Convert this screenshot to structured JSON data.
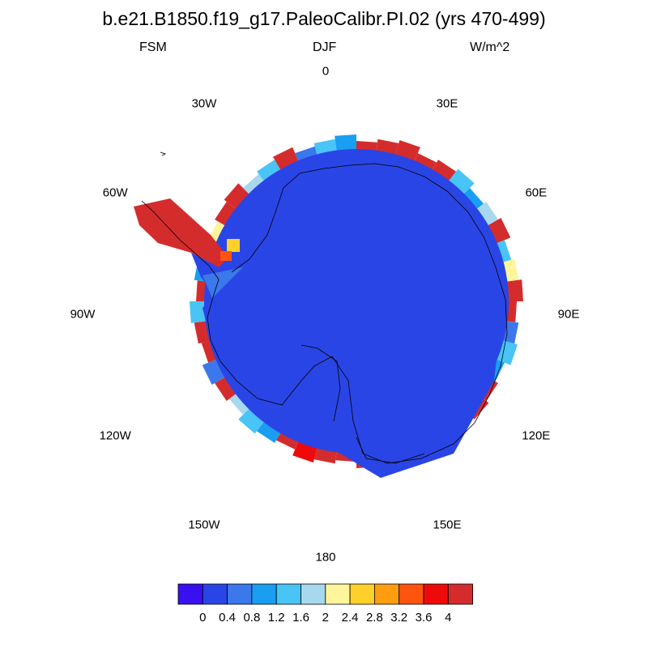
{
  "title": "b.e21.B1850.f19_g17.PaleoCalibr.PI.02 (yrs 470-499)",
  "left_label": "FSM",
  "center_label": "DJF",
  "right_label": "W/m^2",
  "longitude_labels": [
    {
      "id": "lon-0",
      "text": "0",
      "angle": 0
    },
    {
      "id": "lon-30e",
      "text": "30E",
      "angle": 30
    },
    {
      "id": "lon-60e",
      "text": "60E",
      "angle": 60
    },
    {
      "id": "lon-90e",
      "text": "90E",
      "angle": 90
    },
    {
      "id": "lon-120e",
      "text": "120E",
      "angle": 120
    },
    {
      "id": "lon-150e",
      "text": "150E",
      "angle": 150
    },
    {
      "id": "lon-180",
      "text": "180",
      "angle": 180
    },
    {
      "id": "lon-150w",
      "text": "150W",
      "angle": 210
    },
    {
      "id": "lon-120w",
      "text": "120W",
      "angle": 240
    },
    {
      "id": "lon-90w",
      "text": "90W",
      "angle": 270
    },
    {
      "id": "lon-60w",
      "text": "60W",
      "angle": 300
    },
    {
      "id": "lon-30w",
      "text": "30W",
      "angle": 330
    }
  ],
  "colorbar": {
    "colors": [
      "#3a10f0",
      "#2a45e6",
      "#3a78ec",
      "#1a9ef2",
      "#48c4f6",
      "#a8d8ee",
      "#fff59a",
      "#ffd02a",
      "#ff9c10",
      "#ff5410",
      "#ee0a0a",
      "#d42c2c"
    ],
    "labels": [
      "0",
      "0.4",
      "0.8",
      "1.2",
      "1.6",
      "2",
      "2.4",
      "2.8",
      "3.2",
      "3.6",
      "4"
    ]
  },
  "colors": {
    "interior": "#2a45e6",
    "high": "#d42c2c"
  }
}
